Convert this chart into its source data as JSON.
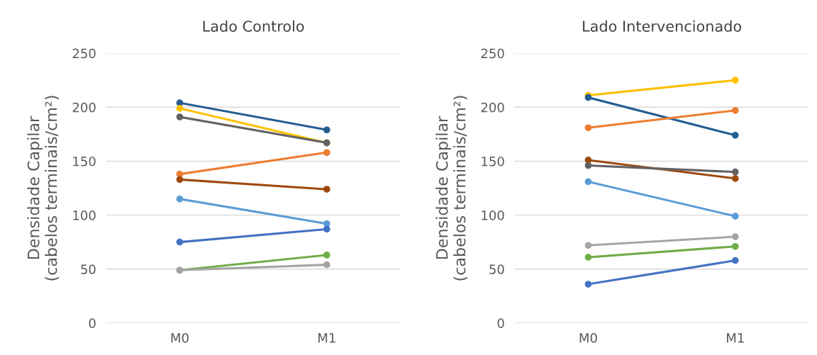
{
  "chart_data": [
    {
      "type": "line",
      "title": "Lado Controlo",
      "ylabel": "Densidade Capilar\n(cabelos terminais/cm²)",
      "categories": [
        "M0",
        "M1"
      ],
      "ylim": [
        0,
        250
      ],
      "yticks": [
        0,
        50,
        100,
        150,
        200,
        250
      ],
      "grid": "y",
      "legend": false,
      "marker": "circle",
      "line_style": "solid",
      "series": [
        {
          "color": "#255e91",
          "values": [
            204,
            179
          ]
        },
        {
          "color": "#ffc000",
          "values": [
            199,
            167
          ]
        },
        {
          "color": "#636363",
          "values": [
            191,
            167
          ]
        },
        {
          "color": "#ed7d31",
          "values": [
            138,
            158
          ]
        },
        {
          "color": "#9e480e",
          "values": [
            133,
            124
          ]
        },
        {
          "color": "#5b9bd5",
          "values": [
            115,
            92
          ]
        },
        {
          "color": "#4472c4",
          "values": [
            75,
            87
          ]
        },
        {
          "color": "#70ad47",
          "values": [
            49,
            63
          ]
        },
        {
          "color": "#a5a5a5",
          "values": [
            49,
            54
          ]
        }
      ]
    },
    {
      "type": "line",
      "title": "Lado Intervencionado",
      "ylabel": "Densidade Capilar\n(cabelos terminais/cm²)",
      "categories": [
        "M0",
        "M1"
      ],
      "ylim": [
        0,
        250
      ],
      "yticks": [
        0,
        50,
        100,
        150,
        200,
        250
      ],
      "grid": "y",
      "legend": false,
      "marker": "circle",
      "line_style": "solid",
      "series": [
        {
          "color": "#ffc000",
          "values": [
            211,
            225
          ]
        },
        {
          "color": "#255e91",
          "values": [
            209,
            174
          ]
        },
        {
          "color": "#ed7d31",
          "values": [
            181,
            197
          ]
        },
        {
          "color": "#9e480e",
          "values": [
            151,
            134
          ]
        },
        {
          "color": "#636363",
          "values": [
            146,
            140
          ]
        },
        {
          "color": "#5b9bd5",
          "values": [
            131,
            99
          ]
        },
        {
          "color": "#a5a5a5",
          "values": [
            72,
            80
          ]
        },
        {
          "color": "#70ad47",
          "values": [
            61,
            71
          ]
        },
        {
          "color": "#4472c4",
          "values": [
            36,
            58
          ]
        }
      ]
    }
  ]
}
